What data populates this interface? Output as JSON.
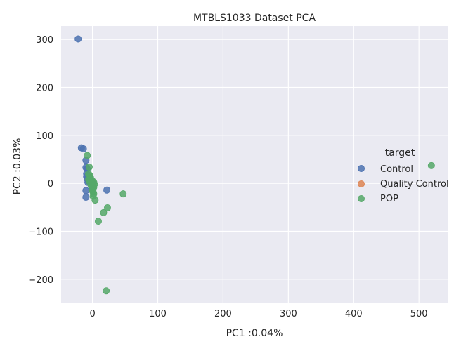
{
  "chart_data": {
    "type": "scatter",
    "title": "MTBLS1033 Dataset PCA",
    "xlabel": "PC1 :0.04%",
    "ylabel": "PC2 :0.03%",
    "xlim": [
      -48,
      545
    ],
    "ylim": [
      -250,
      328
    ],
    "x_ticks": [
      0,
      100,
      200,
      300,
      400,
      500
    ],
    "y_ticks": [
      -200,
      -100,
      0,
      100,
      200,
      300
    ],
    "x_tick_labels": [
      "0",
      "100",
      "200",
      "300",
      "400",
      "500"
    ],
    "y_tick_labels": [
      "−200",
      "−100",
      "0",
      "100",
      "200",
      "300"
    ],
    "grid": true,
    "legend": {
      "title": "target",
      "position": "right"
    },
    "series": [
      {
        "name": "Control",
        "color": "#4c72b0",
        "points": [
          [
            -22,
            301
          ],
          [
            -17,
            74
          ],
          [
            -14,
            72
          ],
          [
            -10,
            48
          ],
          [
            -10,
            33
          ],
          [
            -8,
            30
          ],
          [
            -9,
            20
          ],
          [
            -9,
            14
          ],
          [
            -8,
            9
          ],
          [
            -6,
            5
          ],
          [
            -10,
            -15
          ],
          [
            -10,
            -29
          ],
          [
            22,
            -14
          ],
          [
            -7,
            2
          ],
          [
            -5,
            12
          ]
        ]
      },
      {
        "name": "Quality Control",
        "color": "#dd8452",
        "points": []
      },
      {
        "name": "POP",
        "color": "#55a868",
        "points": [
          [
            -8,
            58
          ],
          [
            -5,
            34
          ],
          [
            -6,
            20
          ],
          [
            -4,
            16
          ],
          [
            -3,
            10
          ],
          [
            -2,
            5
          ],
          [
            -1,
            2
          ],
          [
            0,
            0
          ],
          [
            1,
            -3
          ],
          [
            0,
            -6
          ],
          [
            1,
            -10
          ],
          [
            -1,
            -14
          ],
          [
            1,
            -18
          ],
          [
            2,
            -22
          ],
          [
            1,
            -27
          ],
          [
            4,
            -35
          ],
          [
            -6,
            8
          ],
          [
            -4,
            2
          ],
          [
            0,
            5
          ],
          [
            2,
            2
          ],
          [
            -2,
            -5
          ],
          [
            0,
            -15
          ],
          [
            2,
            -8
          ],
          [
            -3,
            12
          ],
          [
            3,
            -2
          ],
          [
            47,
            -22
          ],
          [
            23,
            -51
          ],
          [
            17,
            -61
          ],
          [
            9,
            -79
          ],
          [
            21,
            -224
          ],
          [
            519,
            37
          ]
        ]
      }
    ]
  }
}
